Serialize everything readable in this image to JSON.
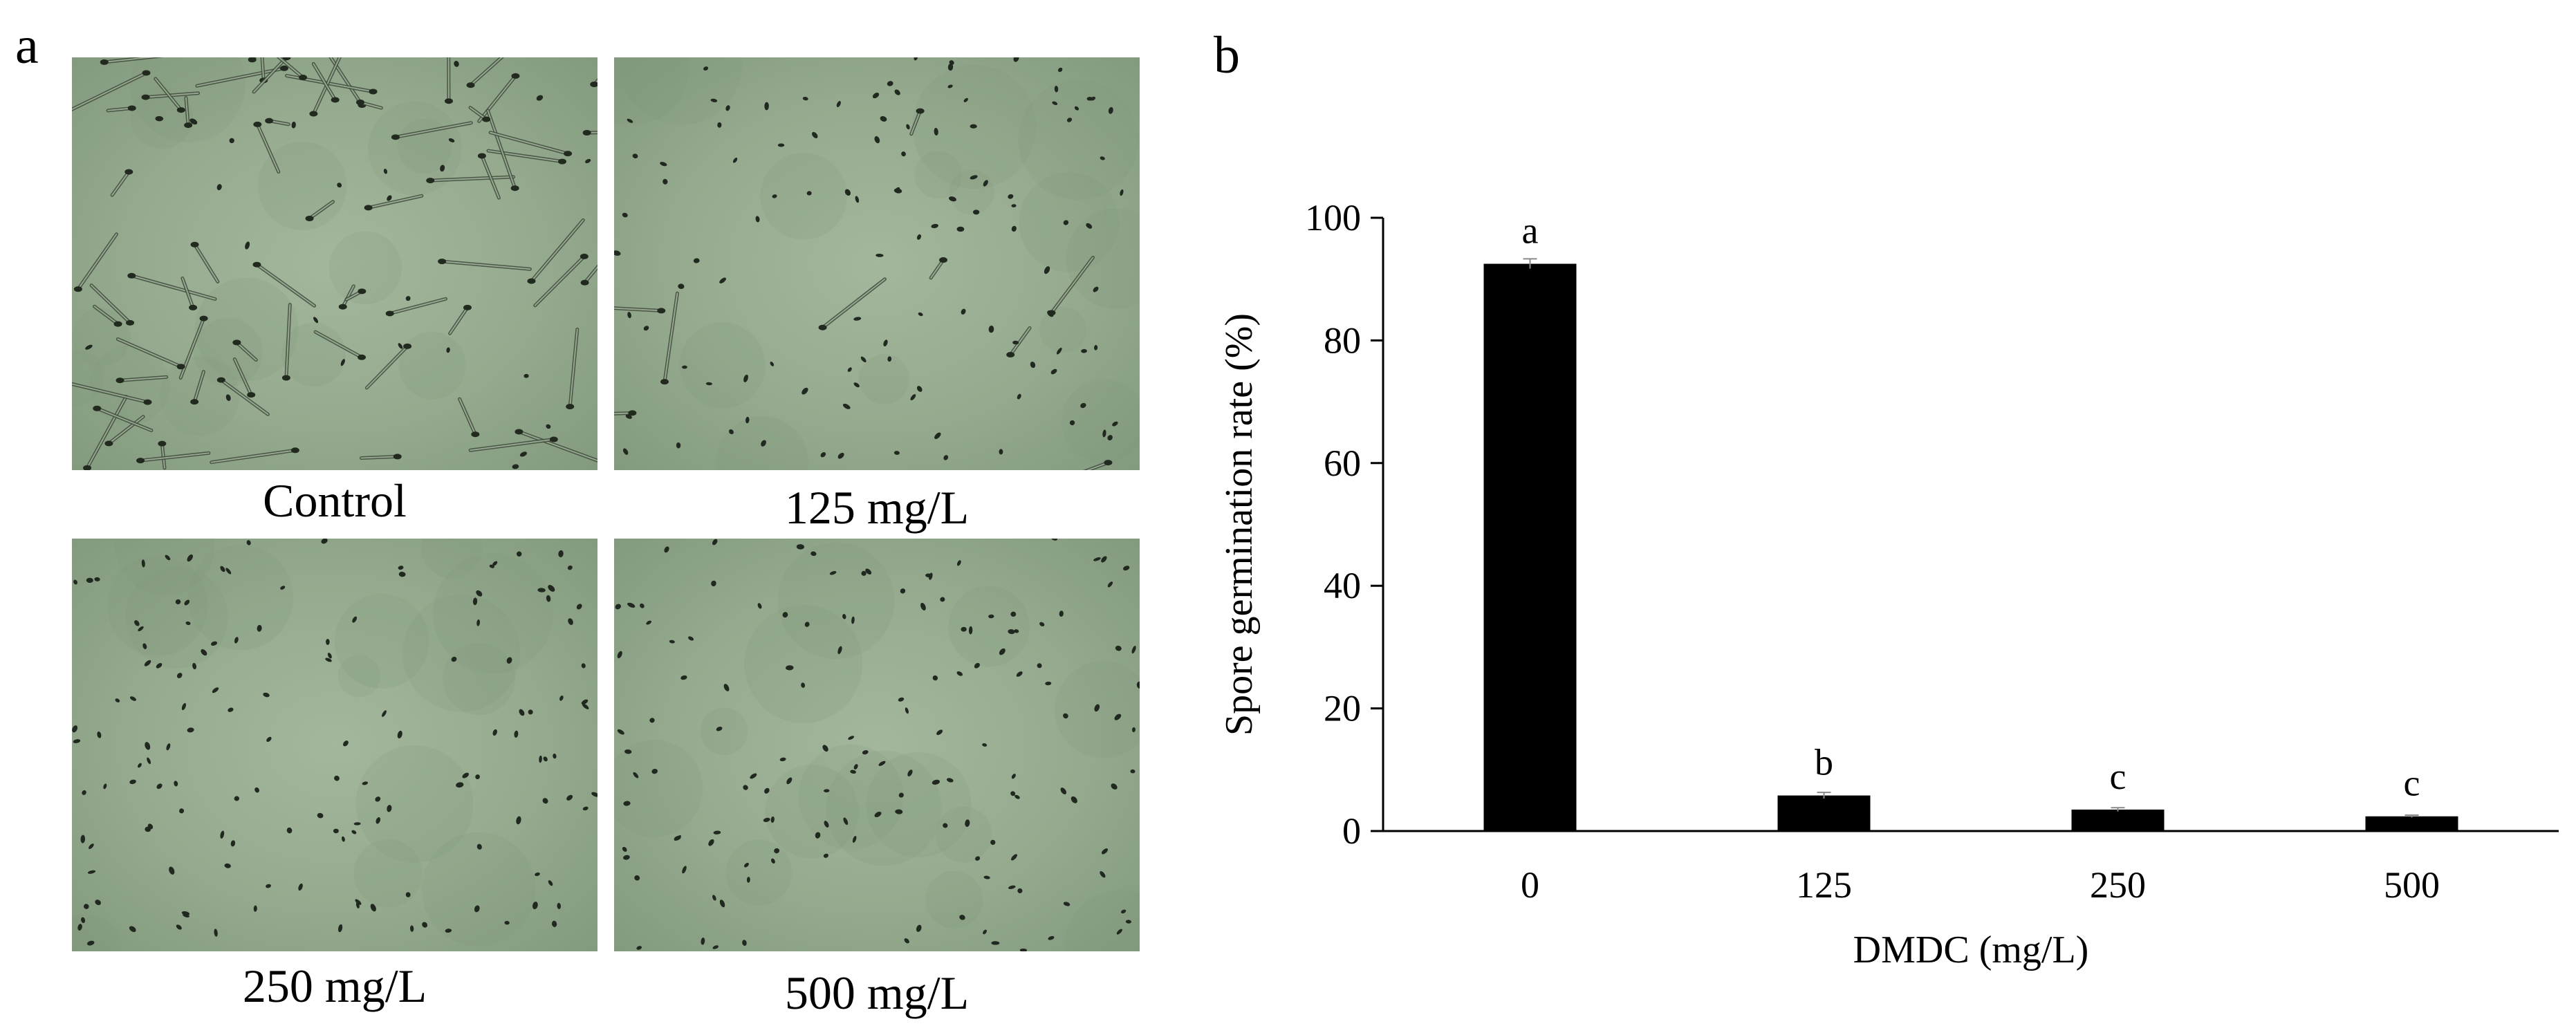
{
  "panel_a": {
    "letter": "a",
    "images": [
      {
        "label": "Control",
        "content": "germinated"
      },
      {
        "label": "125 mg/L",
        "content": "mostly-spores"
      },
      {
        "label": "250 mg/L",
        "content": "spores"
      },
      {
        "label": "500 mg/L",
        "content": "spores"
      }
    ],
    "image_tint": "#95aa8e"
  },
  "panel_b": {
    "letter": "b"
  },
  "chart_data": {
    "type": "bar",
    "categories": [
      "0",
      "125",
      "250",
      "500"
    ],
    "values": [
      92.5,
      5.8,
      3.5,
      2.4
    ],
    "errors": [
      0.8,
      0.5,
      0.3,
      0.2
    ],
    "significance": [
      "a",
      "b",
      "c",
      "c"
    ],
    "xlabel": "DMDC (mg/L)",
    "ylabel": "Spore germination rate (%)",
    "ylim": [
      0,
      100
    ],
    "yticks": [
      0,
      20,
      40,
      60,
      80,
      100
    ],
    "grid": false,
    "legend": "none",
    "bar_color": "#000000"
  }
}
